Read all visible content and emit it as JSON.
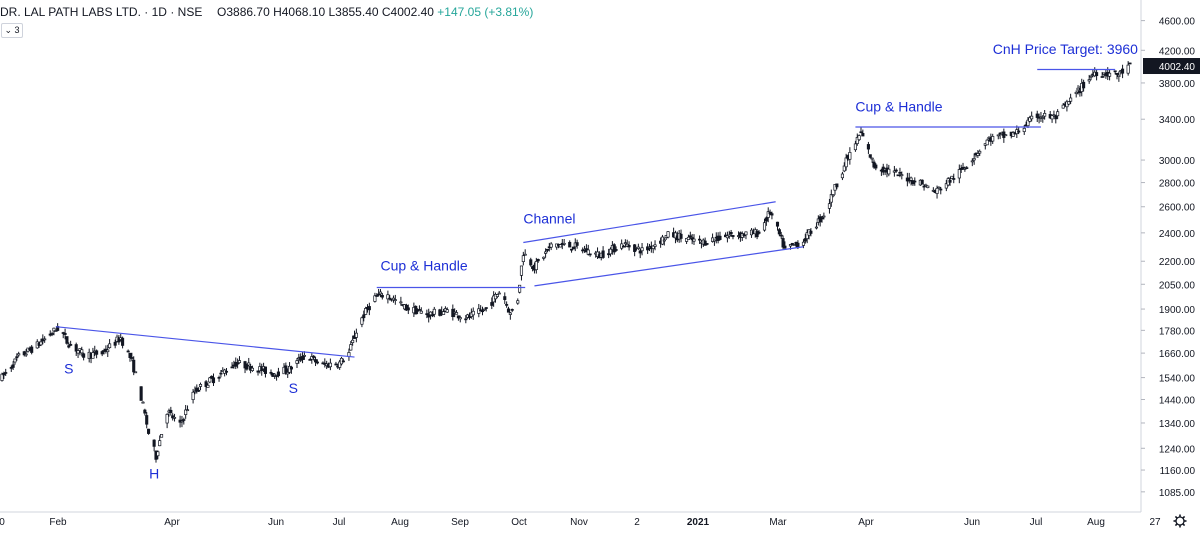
{
  "legend": {
    "symbol": "DR. LAL PATH LABS LTD.",
    "interval": "1D",
    "exchange": "NSE",
    "open": "O3886.70",
    "high": "H4068.10",
    "low": "L3855.40",
    "close": "C4002.40",
    "change": "+147.05 (+3.81%)",
    "toggle": "3"
  },
  "colors": {
    "candle": "#131722",
    "annotation": "#1d2fd6",
    "trendline": "#4a55e8",
    "axis_text": "#131722",
    "grid": "#e0e3eb",
    "price_badge": "#131722"
  },
  "settings_icon": "gear-icon",
  "chart_data": {
    "type": "candlestick",
    "symbol": "DR. LAL PATH LABS LTD.",
    "interval": "1D",
    "last_price": 4002.4,
    "y_axis": {
      "ticks": [
        1085,
        1160,
        1240,
        1340,
        1440,
        1540,
        1660,
        1780,
        1900,
        2050,
        2200,
        2400,
        2600,
        2800,
        3000,
        3400,
        3800,
        4200,
        4600
      ],
      "labels": [
        "1085.00",
        "1160.00",
        "1240.00",
        "1340.00",
        "1440.00",
        "1540.00",
        "1660.00",
        "1780.00",
        "1900.00",
        "2050.00",
        "2200.00",
        "2400.00",
        "2600.00",
        "2800.00",
        "3000.00",
        "3400.00",
        "3800.00",
        "4200.00",
        "4600.00"
      ],
      "range": [
        1020,
        4900
      ],
      "scale": "log",
      "last_label": "4002.40"
    },
    "x_axis": {
      "labels": [
        "0",
        "Feb",
        "Apr",
        "Jun",
        "Jul",
        "Aug",
        "Sep",
        "Oct",
        "Nov",
        "2",
        "2021",
        "Mar",
        "Apr",
        "Jun",
        "Jul",
        "Aug",
        "27"
      ],
      "bold_labels": [
        "2021"
      ],
      "range": [
        "2020-01-01",
        "2021-08-31"
      ]
    },
    "price_path": [
      [
        "2020-01-01",
        1540
      ],
      [
        "2020-01-10",
        1640
      ],
      [
        "2020-01-20",
        1700
      ],
      [
        "2020-02-01",
        1800
      ],
      [
        "2020-02-05",
        1720
      ],
      [
        "2020-02-14",
        1650
      ],
      [
        "2020-02-24",
        1660
      ],
      [
        "2020-03-05",
        1740
      ],
      [
        "2020-03-11",
        1620
      ],
      [
        "2020-03-16",
        1450
      ],
      [
        "2020-03-20",
        1300
      ],
      [
        "2020-03-24",
        1210
      ],
      [
        "2020-03-30",
        1390
      ],
      [
        "2020-04-06",
        1330
      ],
      [
        "2020-04-14",
        1480
      ],
      [
        "2020-04-25",
        1540
      ],
      [
        "2020-05-06",
        1610
      ],
      [
        "2020-05-16",
        1590
      ],
      [
        "2020-05-26",
        1560
      ],
      [
        "2020-06-04",
        1580
      ],
      [
        "2020-06-12",
        1650
      ],
      [
        "2020-06-22",
        1600
      ],
      [
        "2020-07-01",
        1610
      ],
      [
        "2020-07-06",
        1660
      ],
      [
        "2020-07-12",
        1830
      ],
      [
        "2020-07-20",
        1970
      ],
      [
        "2020-07-26",
        1990
      ],
      [
        "2020-08-05",
        1910
      ],
      [
        "2020-08-18",
        1870
      ],
      [
        "2020-08-28",
        1890
      ],
      [
        "2020-09-08",
        1850
      ],
      [
        "2020-09-18",
        1900
      ],
      [
        "2020-09-26",
        2020
      ],
      [
        "2020-10-01",
        1870
      ],
      [
        "2020-10-05",
        1960
      ],
      [
        "2020-10-08",
        2260
      ],
      [
        "2020-10-14",
        2160
      ],
      [
        "2020-10-24",
        2320
      ],
      [
        "2020-11-05",
        2300
      ],
      [
        "2020-11-18",
        2240
      ],
      [
        "2020-12-01",
        2320
      ],
      [
        "2020-12-12",
        2270
      ],
      [
        "2020-12-26",
        2390
      ],
      [
        "2021-01-12",
        2330
      ],
      [
        "2021-01-26",
        2380
      ],
      [
        "2021-02-12",
        2400
      ],
      [
        "2021-02-18",
        2560
      ],
      [
        "2021-02-26",
        2280
      ],
      [
        "2021-03-08",
        2340
      ],
      [
        "2021-03-20",
        2560
      ],
      [
        "2021-03-30",
        2950
      ],
      [
        "2021-04-08",
        3260
      ],
      [
        "2021-04-15",
        2950
      ],
      [
        "2021-04-28",
        2870
      ],
      [
        "2021-05-10",
        2800
      ],
      [
        "2021-05-18",
        2720
      ],
      [
        "2021-06-01",
        2900
      ],
      [
        "2021-06-16",
        3200
      ],
      [
        "2021-06-30",
        3250
      ],
      [
        "2021-07-12",
        3440
      ],
      [
        "2021-07-22",
        3420
      ],
      [
        "2021-08-01",
        3650
      ],
      [
        "2021-08-12",
        3930
      ],
      [
        "2021-08-25",
        3900
      ],
      [
        "2021-08-31",
        4002
      ]
    ],
    "trendlines": [
      {
        "from": [
          "2020-01-30",
          1800
        ],
        "to": [
          "2020-07-09",
          1640
        ]
      },
      {
        "from": [
          "2020-07-21",
          2030
        ],
        "to": [
          "2020-10-09",
          2030
        ]
      },
      {
        "from": [
          "2020-10-08",
          2330
        ],
        "to": [
          "2021-02-21",
          2640
        ]
      },
      {
        "from": [
          "2020-10-14",
          2040
        ],
        "to": [
          "2021-03-08",
          2300
        ]
      },
      {
        "from": [
          "2021-04-05",
          3320
        ],
        "to": [
          "2021-07-14",
          3320
        ]
      },
      {
        "from": [
          "2021-07-12",
          3960
        ],
        "to": [
          "2021-08-23",
          3960
        ]
      }
    ],
    "annotations": [
      {
        "text": "S",
        "date": "2020-02-06",
        "price": 1560
      },
      {
        "text": "H",
        "date": "2020-03-23",
        "price": 1130
      },
      {
        "text": "S",
        "date": "2020-06-06",
        "price": 1470
      },
      {
        "text": "Cup & Handle",
        "date": "2020-07-23",
        "price": 2140
      },
      {
        "text": "Channel",
        "date": "2020-10-08",
        "price": 2470
      },
      {
        "text": "Cup & Handle",
        "date": "2021-04-05",
        "price": 3480
      },
      {
        "text": "CnH Price Target: 3960",
        "date": "2021-06-18",
        "price": 4150
      }
    ]
  }
}
